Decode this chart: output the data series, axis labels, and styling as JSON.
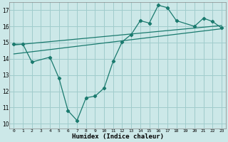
{
  "zigzag_x": [
    0,
    1,
    2,
    4,
    5,
    6,
    7,
    8,
    9,
    10,
    11,
    12,
    13,
    14,
    15,
    16,
    17,
    18,
    20,
    21,
    22,
    23
  ],
  "zigzag_y": [
    14.9,
    14.9,
    13.8,
    14.1,
    12.8,
    10.8,
    10.2,
    11.6,
    11.7,
    12.2,
    13.85,
    15.05,
    15.5,
    16.35,
    16.2,
    17.3,
    17.15,
    16.35,
    16.0,
    16.5,
    16.3,
    15.9
  ],
  "trend1_x": [
    0,
    23
  ],
  "trend1_y": [
    14.85,
    16.05
  ],
  "trend2_x": [
    0,
    23
  ],
  "trend2_y": [
    14.3,
    15.85
  ],
  "line_color": "#1a7a6e",
  "bg_color": "#cce8e8",
  "grid_color": "#a0cccc",
  "xlabel": "Humidex (Indice chaleur)",
  "xlabel_fontsize": 6.5,
  "yticks": [
    10,
    11,
    12,
    13,
    14,
    15,
    16,
    17
  ],
  "xticks": [
    0,
    1,
    2,
    3,
    4,
    5,
    6,
    7,
    8,
    9,
    10,
    11,
    12,
    13,
    14,
    15,
    16,
    17,
    18,
    19,
    20,
    21,
    22,
    23
  ],
  "xlim": [
    -0.5,
    23.5
  ],
  "ylim": [
    9.7,
    17.5
  ]
}
